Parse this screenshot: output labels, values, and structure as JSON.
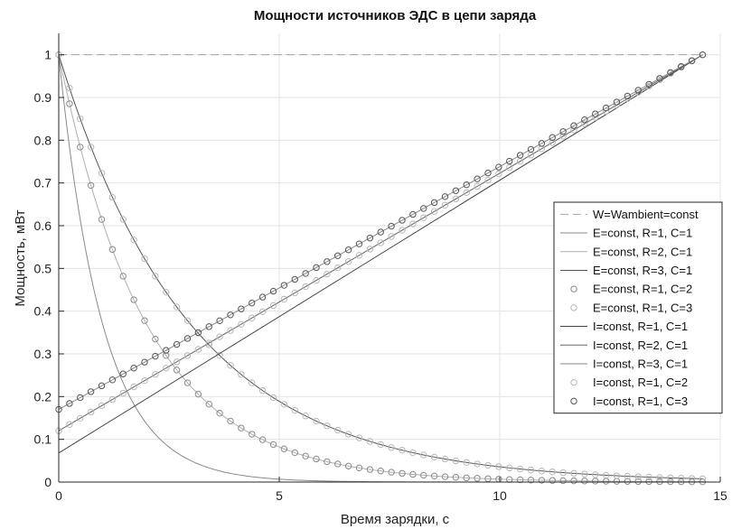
{
  "chart_data": {
    "type": "line",
    "title": "Мощности источников ЭДС в цепи заряда",
    "xlabel": "Время зарядки, с",
    "ylabel": "Мощность, мВт",
    "xlim": [
      0,
      15
    ],
    "ylim": [
      0,
      1.05
    ],
    "xticks": [
      0,
      5,
      10,
      15
    ],
    "yticks": [
      0,
      0.1,
      0.2,
      0.3,
      0.4,
      0.5,
      0.6,
      0.7,
      0.8,
      0.9,
      1
    ],
    "grid": true,
    "legend_position": "right",
    "t_end": 14.6,
    "series": [
      {
        "name": "W=Wambient=const",
        "kind": "const",
        "value": 1,
        "style": "dashed",
        "color": "#a6a6a6",
        "marker": "none"
      },
      {
        "name": "E=const, R=1, C=1",
        "kind": "exp",
        "tau": 1,
        "style": "solid",
        "color": "#8a8a8a",
        "marker": "none"
      },
      {
        "name": "E=const, R=2, C=1",
        "kind": "exp",
        "tau": 2,
        "style": "solid",
        "color": "#b0b0b0",
        "marker": "none"
      },
      {
        "name": "E=const, R=3, C=1",
        "kind": "exp",
        "tau": 3,
        "style": "solid",
        "color": "#555555",
        "marker": "none"
      },
      {
        "name": "E=const, R=1, C=2",
        "kind": "exp",
        "tau": 2,
        "style": "none",
        "color": "#8a8a8a",
        "marker": "circle"
      },
      {
        "name": "E=const, R=1, C=3",
        "kind": "exp",
        "tau": 3,
        "style": "none",
        "color": "#b8b8b8",
        "marker": "circle"
      },
      {
        "name": "I=const, R=1, C=1",
        "kind": "linear",
        "y0": 0.068,
        "style": "solid",
        "color": "#444444",
        "marker": "none"
      },
      {
        "name": "I=const, R=2, C=1",
        "kind": "linear",
        "y0": 0.12,
        "style": "solid",
        "color": "#666666",
        "marker": "none"
      },
      {
        "name": "I=const, R=3, C=1",
        "kind": "linear",
        "y0": 0.17,
        "style": "solid",
        "color": "#8a8a8a",
        "marker": "none"
      },
      {
        "name": "I=const, R=1, C=2",
        "kind": "linear",
        "y0": 0.12,
        "style": "none",
        "color": "#b8b8b8",
        "marker": "circle"
      },
      {
        "name": "I=const, R=1, C=3",
        "kind": "linear",
        "y0": 0.17,
        "style": "none",
        "color": "#555555",
        "marker": "circle"
      }
    ]
  }
}
